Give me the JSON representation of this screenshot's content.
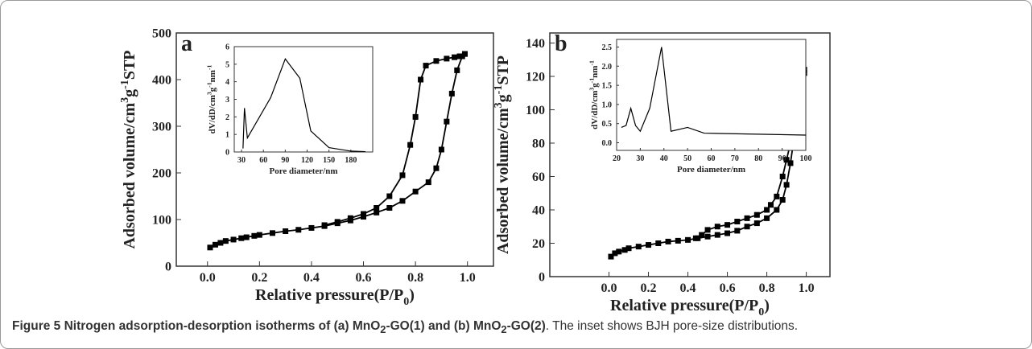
{
  "chart_data": [
    {
      "type": "line",
      "panel_label": "a",
      "markers": "square",
      "xlabel_parts": [
        "Relative pressure(P/P",
        "0",
        ")"
      ],
      "ylabel_parts": [
        "Adsorbed volume/cm",
        "3",
        "g",
        "-1",
        "STP"
      ],
      "xlim": [
        -0.12,
        1.1
      ],
      "ylim": [
        0,
        500
      ],
      "xticks": [
        {
          "value": 0,
          "label": "0.0"
        },
        0.2,
        0.4,
        0.6,
        0.8,
        {
          "value": 1,
          "label": "1.0"
        }
      ],
      "yticks": [
        0,
        100,
        200,
        300,
        400,
        500
      ],
      "series": [
        {
          "color": "#000000",
          "x": [
            0.01,
            0.03,
            0.05,
            0.07,
            0.1,
            0.13,
            0.15,
            0.18,
            0.2,
            0.25,
            0.3,
            0.35,
            0.4,
            0.45,
            0.5,
            0.55,
            0.6,
            0.65,
            0.7,
            0.75,
            0.8,
            0.85,
            0.88,
            0.9,
            0.92,
            0.94,
            0.96,
            0.98,
            0.99
          ],
          "values": [
            40,
            46,
            50,
            54,
            57,
            60,
            62,
            65,
            67,
            71,
            75,
            78,
            82,
            86,
            92,
            98,
            106,
            115,
            125,
            140,
            160,
            180,
            210,
            250,
            310,
            370,
            420,
            450,
            455
          ]
        },
        {
          "color": "#000000",
          "x": [
            0.99,
            0.97,
            0.95,
            0.92,
            0.88,
            0.84,
            0.82,
            0.8,
            0.78,
            0.75,
            0.7,
            0.65,
            0.6,
            0.55,
            0.5,
            0.45
          ],
          "values": [
            455,
            450,
            448,
            445,
            440,
            430,
            400,
            320,
            260,
            195,
            150,
            125,
            112,
            103,
            95,
            88
          ]
        }
      ]
    },
    {
      "type": "line",
      "xlabel_parts": [
        "Pore diameter/nm"
      ],
      "ylabel_parts": [
        "dV/dD/cm",
        "3",
        "g",
        "-1",
        "nm",
        "-1"
      ],
      "xlim": [
        20,
        210
      ],
      "ylim": [
        0,
        6
      ],
      "xticks": [
        30,
        60,
        90,
        120,
        150,
        180
      ],
      "yticks": [
        0,
        1,
        2,
        3,
        4,
        5,
        6
      ],
      "series": [
        {
          "color": "#000000",
          "x": [
            32,
            34,
            38,
            70,
            90,
            110,
            125,
            150,
            180,
            200
          ],
          "values": [
            0.2,
            2.5,
            0.8,
            3.1,
            5.3,
            4.2,
            1.2,
            0.25,
            0.05,
            0.02
          ]
        }
      ]
    },
    {
      "type": "line",
      "panel_label": "b",
      "markers": "square",
      "xlabel_parts": [
        "Relative pressure(P/P",
        "0",
        ")"
      ],
      "ylabel_parts": [
        "Adsorbed volume/cm",
        "3",
        "g",
        "-1",
        "STP"
      ],
      "xlim": [
        -0.3,
        1.12
      ],
      "ylim": [
        0,
        146
      ],
      "xticks": [
        {
          "value": 0,
          "label": "0.0"
        },
        0.2,
        0.4,
        0.6,
        0.8,
        {
          "value": 1,
          "label": "1.0"
        }
      ],
      "yticks": [
        0,
        20,
        40,
        60,
        80,
        100,
        120,
        140
      ],
      "series": [
        {
          "color": "#000000",
          "x": [
            0.01,
            0.03,
            0.05,
            0.08,
            0.1,
            0.15,
            0.2,
            0.25,
            0.3,
            0.35,
            0.4,
            0.45,
            0.5,
            0.55,
            0.6,
            0.65,
            0.7,
            0.75,
            0.8,
            0.85,
            0.88,
            0.9,
            0.92,
            0.94,
            0.96,
            0.98,
            0.99
          ],
          "values": [
            12,
            14,
            15,
            16,
            17,
            18,
            19,
            20,
            21,
            21.5,
            22,
            23,
            24,
            25,
            26,
            27.5,
            30,
            32,
            35,
            40,
            46,
            55,
            68,
            85,
            100,
            115,
            122
          ]
        },
        {
          "color": "#000000",
          "x": [
            0.99,
            0.97,
            0.95,
            0.93,
            0.9,
            0.88,
            0.85,
            0.82,
            0.8,
            0.75,
            0.7,
            0.65,
            0.6,
            0.55,
            0.5,
            0.47,
            0.44
          ],
          "values": [
            124,
            110,
            98,
            85,
            70,
            60,
            48,
            43,
            40,
            37,
            35,
            33,
            31,
            30,
            28,
            25,
            23
          ]
        }
      ]
    },
    {
      "type": "line",
      "xlabel_parts": [
        "Pore diameter/nm"
      ],
      "ylabel_parts": [
        "dV/dD/cm",
        "3",
        "g",
        "-1",
        "nm",
        "-1"
      ],
      "xlim": [
        20,
        100
      ],
      "ylim": [
        -0.2,
        2.7
      ],
      "xticks": [
        20,
        30,
        40,
        50,
        60,
        70,
        80,
        90,
        100
      ],
      "yticks": [
        {
          "value": 0,
          "label": "0.0"
        },
        0.5,
        {
          "value": 1,
          "label": "1.0"
        },
        1.5,
        {
          "value": 2,
          "label": "2.0"
        },
        2.5
      ],
      "series": [
        {
          "color": "#000000",
          "x": [
            22,
            24,
            26,
            28,
            30,
            34,
            39,
            43,
            50,
            57,
            100
          ],
          "values": [
            0.4,
            0.45,
            0.9,
            0.45,
            0.3,
            0.9,
            2.5,
            0.3,
            0.4,
            0.25,
            0.2
          ]
        }
      ]
    }
  ],
  "caption": {
    "label": "Figure 5",
    "title_parts": [
      "Nitrogen adsorption-desorption isotherms of (a) MnO",
      "2",
      "-GO(1) and (b) MnO",
      "2",
      "-GO(2)"
    ],
    "text": ". The inset shows BJH pore-size distributions."
  }
}
